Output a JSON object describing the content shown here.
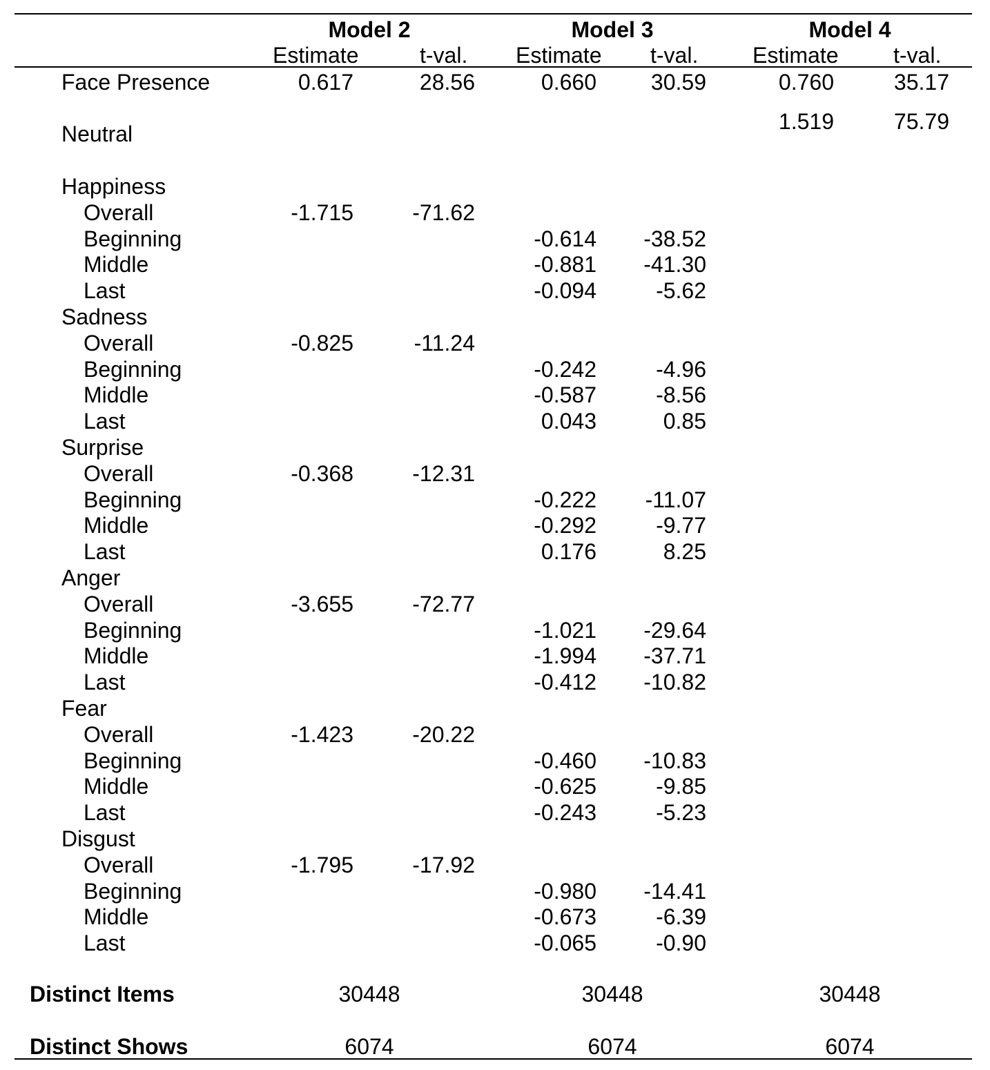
{
  "models": [
    {
      "name": "Model 2",
      "estimate_label": "Estimate",
      "tval_label": "t-val."
    },
    {
      "name": "Model 3",
      "estimate_label": "Estimate",
      "tval_label": "t-val."
    },
    {
      "name": "Model 4",
      "estimate_label": "Estimate",
      "tval_label": "t-val."
    }
  ],
  "face_presence": {
    "label": "Face Presence",
    "values": [
      "0.617",
      "28.56",
      "0.660",
      "30.59",
      "0.760",
      "35.17"
    ]
  },
  "neutral": {
    "label": "Neutral",
    "values": [
      "1.519",
      "75.79"
    ]
  },
  "emotions": [
    {
      "label": "Happiness",
      "overall": {
        "label": "Overall",
        "est": "-1.715",
        "t": "-71.62"
      },
      "phases": [
        {
          "label": "Beginning",
          "est": "-0.614",
          "t": "-38.52"
        },
        {
          "label": "Middle",
          "est": "-0.881",
          "t": "-41.30"
        },
        {
          "label": "Last",
          "est": "-0.094",
          "t": "-5.62"
        }
      ]
    },
    {
      "label": "Sadness",
      "overall": {
        "label": "Overall",
        "est": "-0.825",
        "t": "-11.24"
      },
      "phases": [
        {
          "label": "Beginning",
          "est": "-0.242",
          "t": "-4.96"
        },
        {
          "label": "Middle",
          "est": "-0.587",
          "t": "-8.56"
        },
        {
          "label": "Last",
          "est": "0.043",
          "t": "0.85"
        }
      ]
    },
    {
      "label": "Surprise",
      "overall": {
        "label": "Overall",
        "est": "-0.368",
        "t": "-12.31"
      },
      "phases": [
        {
          "label": "Beginning",
          "est": "-0.222",
          "t": "-11.07"
        },
        {
          "label": "Middle",
          "est": "-0.292",
          "t": "-9.77"
        },
        {
          "label": "Last",
          "est": "0.176",
          "t": "8.25"
        }
      ]
    },
    {
      "label": "Anger",
      "overall": {
        "label": "Overall",
        "est": "-3.655",
        "t": "-72.77"
      },
      "phases": [
        {
          "label": "Beginning",
          "est": "-1.021",
          "t": "-29.64"
        },
        {
          "label": "Middle",
          "est": "-1.994",
          "t": "-37.71"
        },
        {
          "label": "Last",
          "est": "-0.412",
          "t": "-10.82"
        }
      ]
    },
    {
      "label": "Fear",
      "overall": {
        "label": "Overall",
        "est": "-1.423",
        "t": "-20.22"
      },
      "phases": [
        {
          "label": "Beginning",
          "est": "-0.460",
          "t": "-10.83"
        },
        {
          "label": "Middle",
          "est": "-0.625",
          "t": "-9.85"
        },
        {
          "label": "Last",
          "est": "-0.243",
          "t": "-5.23"
        }
      ]
    },
    {
      "label": "Disgust",
      "overall": {
        "label": "Overall",
        "est": "-1.795",
        "t": "-17.92"
      },
      "phases": [
        {
          "label": "Beginning",
          "est": "-0.980",
          "t": "-14.41"
        },
        {
          "label": "Middle",
          "est": "-0.673",
          "t": "-6.39"
        },
        {
          "label": "Last",
          "est": "-0.065",
          "t": "-0.90"
        }
      ]
    }
  ],
  "distinct_items": {
    "label": "Distinct Items",
    "values": [
      "30448",
      "30448",
      "30448"
    ]
  },
  "distinct_shows": {
    "label": "Distinct Shows",
    "values": [
      "6074",
      "6074",
      "6074"
    ]
  }
}
